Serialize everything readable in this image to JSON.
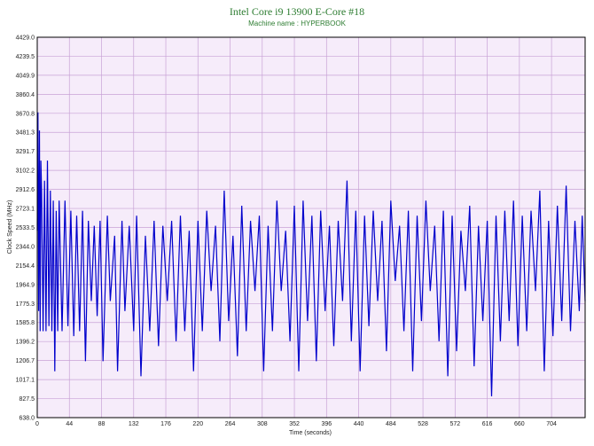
{
  "chart_data": {
    "type": "line",
    "title": "Intel Core i9 13900 E-Core #18",
    "subtitle": "Machine name : HYPERBOOK",
    "xlabel": "Time (seconds)",
    "ylabel": "Clock Speed (MHz)",
    "xlim": [
      0,
      750
    ],
    "ylim": [
      638.0,
      4429.0
    ],
    "x_ticks": [
      "0",
      "44",
      "88",
      "132",
      "176",
      "220",
      "264",
      "308",
      "352",
      "396",
      "440",
      "484",
      "528",
      "572",
      "616",
      "660",
      "704"
    ],
    "y_ticks": [
      "4429.0",
      "4239.5",
      "4049.9",
      "3860.4",
      "3670.8",
      "3481.3",
      "3291.7",
      "3102.2",
      "2912.6",
      "2723.1",
      "2533.5",
      "2344.0",
      "2154.4",
      "1964.9",
      "1775.3",
      "1585.8",
      "1396.2",
      "1206.7",
      "1017.1",
      "827.5",
      "638.0"
    ],
    "grid": true,
    "plot_background": "#f6ecfa",
    "grid_color": "#c8a2d6",
    "line_color": "#0000cc",
    "series": [
      {
        "x": [
          0,
          1,
          2,
          3,
          4,
          5,
          6,
          8,
          10,
          12,
          14,
          16,
          18,
          20,
          22,
          24,
          26,
          28,
          30,
          34,
          38,
          42,
          46,
          50,
          54,
          58,
          62,
          66,
          70,
          74,
          78,
          82,
          86,
          90,
          96,
          100,
          106,
          110,
          116,
          120,
          126,
          132,
          136,
          142,
          148,
          154,
          160,
          166,
          172,
          178,
          184,
          190,
          196,
          202,
          208,
          214,
          220,
          226,
          232,
          238,
          244,
          250,
          256,
          262,
          268,
          274,
          280,
          286,
          292,
          298,
          304,
          310,
          316,
          322,
          328,
          334,
          340,
          346,
          352,
          358,
          364,
          370,
          376,
          382,
          388,
          394,
          400,
          406,
          412,
          418,
          424,
          430,
          436,
          442,
          448,
          454,
          460,
          466,
          472,
          478,
          484,
          490,
          496,
          502,
          508,
          514,
          520,
          526,
          532,
          538,
          544,
          550,
          556,
          562,
          568,
          574,
          580,
          586,
          592,
          598,
          604,
          610,
          616,
          622,
          628,
          634,
          640,
          646,
          652,
          658,
          664,
          670,
          676,
          682,
          688,
          694,
          700,
          706,
          712,
          718,
          724,
          730,
          736,
          742,
          746,
          750
        ],
        "values": [
          2500,
          3680,
          1700,
          3500,
          1500,
          3200,
          2900,
          1500,
          3000,
          1500,
          3200,
          1550,
          2900,
          1500,
          2800,
          1100,
          2700,
          1500,
          2800,
          1500,
          2800,
          1550,
          2700,
          1450,
          2650,
          1500,
          2700,
          1200,
          2600,
          1800,
          2550,
          1650,
          2600,
          1200,
          2650,
          1800,
          2450,
          1100,
          2600,
          1700,
          2550,
          1500,
          2650,
          1050,
          2450,
          1500,
          2600,
          1350,
          2550,
          1800,
          2600,
          1400,
          2650,
          1500,
          2500,
          1100,
          2600,
          1500,
          2700,
          1900,
          2550,
          1400,
          2900,
          1600,
          2450,
          1250,
          2750,
          1500,
          2600,
          1900,
          2650,
          1100,
          2550,
          1500,
          2800,
          1900,
          2500,
          1400,
          2750,
          1100,
          2800,
          1600,
          2650,
          1200,
          2700,
          1700,
          2550,
          1350,
          2600,
          1800,
          3000,
          1400,
          2700,
          1100,
          2650,
          1550,
          2700,
          1800,
          2600,
          1300,
          2800,
          2000,
          2550,
          1500,
          2700,
          1100,
          2650,
          1600,
          2800,
          1900,
          2550,
          1400,
          2700,
          1050,
          2650,
          1300,
          2500,
          1900,
          2750,
          1150,
          2550,
          1600,
          2600,
          850,
          2650,
          1400,
          2700,
          1600,
          2800,
          1350,
          2650,
          1500,
          2700,
          1900,
          2900,
          1100,
          2600,
          1450,
          2750,
          1600,
          2950,
          1500,
          2600,
          1700,
          2650,
          1800
        ]
      }
    ]
  }
}
